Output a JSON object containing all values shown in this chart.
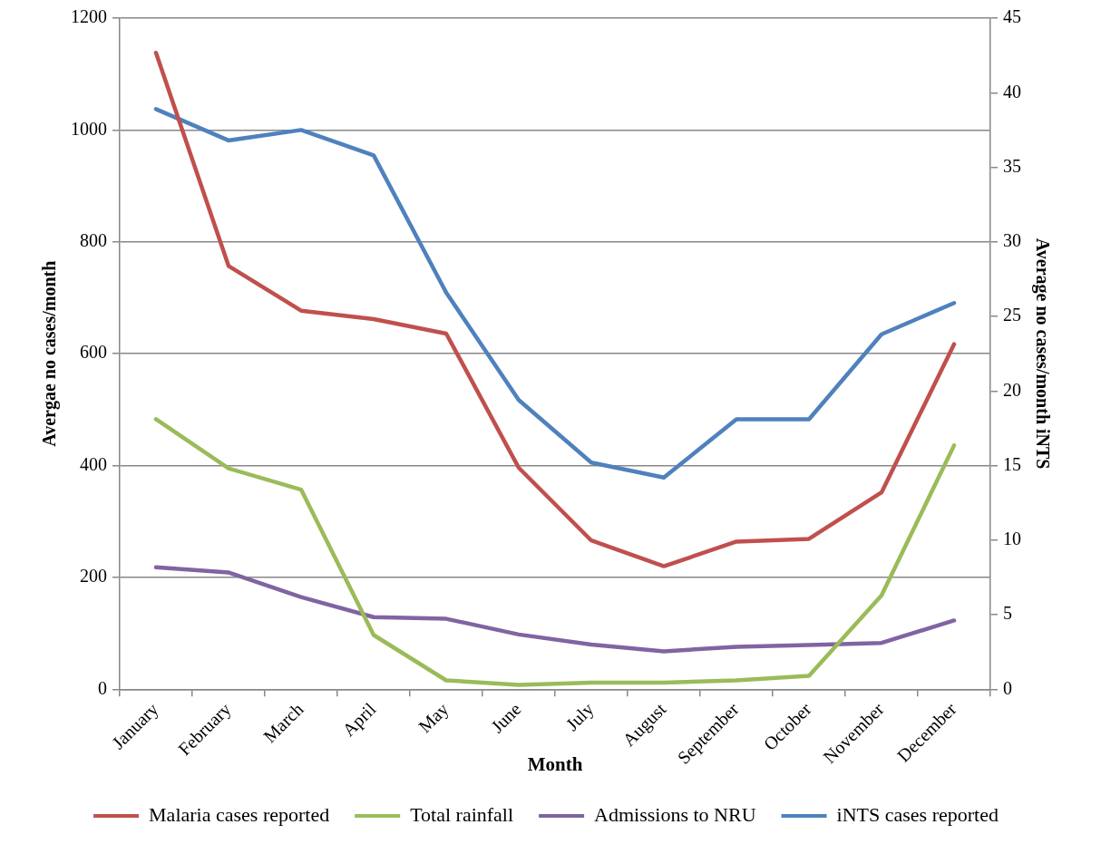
{
  "chart_data": {
    "type": "line",
    "xlabel": "Month",
    "ylabel": "Avergae no cases/month",
    "y2label": "Average no cases/month iNTS",
    "categories": [
      "January",
      "February",
      "March",
      "April",
      "May",
      "June",
      "July",
      "August",
      "September",
      "October",
      "November",
      "December"
    ],
    "series": [
      {
        "name": "Malaria cases reported",
        "color": "#c0504d",
        "values": [
          1138,
          757,
          677,
          662,
          636,
          396,
          266,
          220,
          264,
          269,
          352,
          617
        ]
      },
      {
        "name": "Total rainfall",
        "color": "#9bbb59",
        "values": [
          483,
          395,
          357,
          97,
          16,
          8,
          12,
          12,
          16,
          24,
          168,
          436
        ]
      },
      {
        "name": "Admissions to NRU",
        "color": "#8064a2",
        "values": [
          218,
          209,
          165,
          129,
          126,
          98,
          80,
          68,
          76,
          79,
          83,
          123
        ]
      },
      {
        "name": "iNTS cases reported",
        "color": "#4f81bd",
        "axis": "y2",
        "values": [
          38.9,
          36.8,
          37.5,
          35.8,
          26.6,
          19.4,
          15.2,
          14.2,
          18.1,
          18.1,
          23.8,
          25.9
        ]
      }
    ],
    "ylim": [
      0,
      1200
    ],
    "yticks": [
      0,
      200,
      400,
      600,
      800,
      1000,
      1200
    ],
    "y2lim": [
      0,
      45
    ],
    "y2ticks": [
      0,
      5,
      10,
      15,
      20,
      25,
      30,
      35,
      40,
      45
    ],
    "grid": "y",
    "legend": "bottom",
    "marker": "none",
    "line_style": "solid"
  }
}
